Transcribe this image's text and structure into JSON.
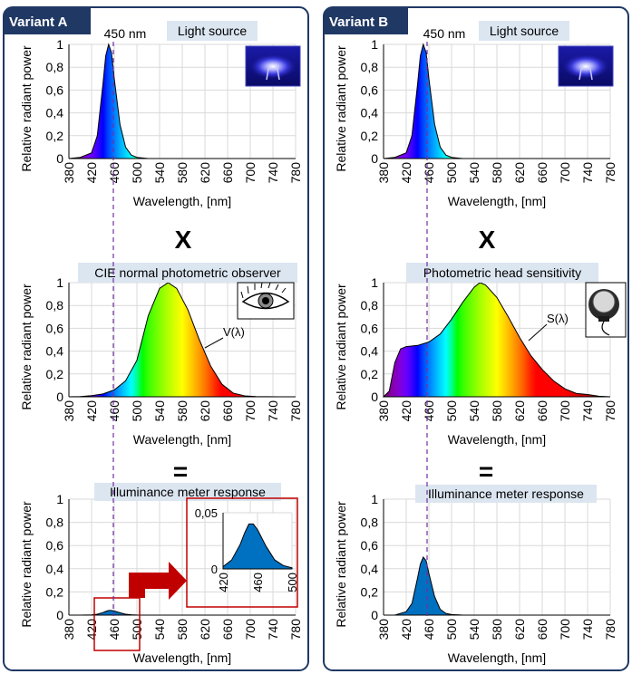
{
  "colors": {
    "frame": "#1f3864",
    "tab_fill": "#1f3864",
    "title_fill": "#dce6f1",
    "dash_line": "#7030a0",
    "response_fill": "#0070c0",
    "inset_frame": "#c00000",
    "arrow": "#c00000"
  },
  "variant_a": {
    "tab": "Variant A",
    "marker_label": "450 nm",
    "operator_multiply": "X",
    "operator_equals": "=",
    "source_chart": {
      "title": "Light source",
      "ylabel": "Relative radiant power",
      "xlabel": "Wavelength, [nm]"
    },
    "sensitivity_chart": {
      "title": "CIE normal photometric observer",
      "curve_label": "V(λ)",
      "ylabel": "Relative radiant power",
      "xlabel": "Wavelength, [nm]"
    },
    "response_chart": {
      "title": "Illuminance meter response",
      "ylabel": "Relative radiant power",
      "xlabel": "Wavelength, [nm]"
    }
  },
  "variant_b": {
    "tab": "Variant B",
    "marker_label": "450 nm",
    "operator_multiply": "X",
    "operator_equals": "=",
    "source_chart": {
      "title": "Light source",
      "ylabel": "Relative radiant power",
      "xlabel": "Wavelength, [nm]"
    },
    "sensitivity_chart": {
      "title": "Photometric head sensitivity",
      "curve_label": "S(λ)",
      "ylabel": "Relative radiant power",
      "xlabel": "Wavelength, [nm]"
    },
    "response_chart": {
      "title": "Illuminance meter response",
      "ylabel": "Relative radiant power",
      "xlabel": "Wavelength, [nm]"
    }
  },
  "chart_data": [
    {
      "type": "area",
      "panel": "A-source",
      "x": [
        380,
        400,
        420,
        430,
        440,
        445,
        450,
        455,
        460,
        470,
        480,
        490,
        500,
        520
      ],
      "y": [
        0,
        0.01,
        0.05,
        0.2,
        0.65,
        0.9,
        1.0,
        0.93,
        0.7,
        0.3,
        0.1,
        0.03,
        0.01,
        0
      ],
      "xlim": [
        380,
        780
      ],
      "ylim": [
        0,
        1
      ],
      "xticks": [
        "380",
        "420",
        "460",
        "500",
        "540",
        "580",
        "620",
        "660",
        "700",
        "740",
        "780"
      ],
      "yticks": [
        "0",
        "0,2",
        "0,4",
        "0,6",
        "0,8",
        "1"
      ],
      "grid": true
    },
    {
      "type": "area",
      "panel": "A-sensitivity",
      "x": [
        380,
        400,
        420,
        440,
        460,
        480,
        500,
        520,
        540,
        555,
        570,
        590,
        610,
        630,
        650,
        670,
        690,
        710,
        730,
        750,
        780
      ],
      "y": [
        0,
        0.002,
        0.01,
        0.025,
        0.06,
        0.14,
        0.32,
        0.71,
        0.95,
        1.0,
        0.95,
        0.76,
        0.5,
        0.27,
        0.11,
        0.032,
        0.008,
        0.002,
        0.0005,
        0.0001,
        0
      ],
      "xlim": [
        380,
        780
      ],
      "ylim": [
        0,
        1
      ],
      "xticks": [
        "380",
        "420",
        "460",
        "500",
        "540",
        "580",
        "620",
        "660",
        "700",
        "740",
        "780"
      ],
      "yticks": [
        "0",
        "0,2",
        "0,4",
        "0,6",
        "0,8",
        "1"
      ],
      "grid": true
    },
    {
      "type": "area",
      "panel": "A-response",
      "x": [
        400,
        420,
        430,
        440,
        445,
        450,
        455,
        460,
        470,
        480,
        490,
        500,
        520
      ],
      "y": [
        0,
        0.002,
        0.008,
        0.022,
        0.032,
        0.04,
        0.04,
        0.035,
        0.02,
        0.008,
        0.003,
        0.001,
        0
      ],
      "xlim": [
        380,
        780
      ],
      "ylim": [
        0,
        1
      ],
      "xticks": [
        "380",
        "420",
        "460",
        "500",
        "540",
        "580",
        "620",
        "660",
        "700",
        "740",
        "780"
      ],
      "yticks": [
        "0",
        "0,2",
        "0,4",
        "0,6",
        "0,8",
        "1"
      ],
      "grid": true
    },
    {
      "type": "area",
      "panel": "A-response-inset",
      "x": [
        420,
        430,
        440,
        445,
        450,
        455,
        460,
        470,
        480,
        490,
        500
      ],
      "y": [
        0.002,
        0.008,
        0.022,
        0.032,
        0.04,
        0.04,
        0.035,
        0.02,
        0.008,
        0.003,
        0.001
      ],
      "xlim": [
        420,
        500
      ],
      "ylim": [
        0,
        0.05
      ],
      "xticks": [
        "420",
        "460",
        "500"
      ],
      "yticks": [
        "0",
        "0,05"
      ],
      "grid": true
    },
    {
      "type": "area",
      "panel": "B-source",
      "x": [
        380,
        400,
        420,
        430,
        440,
        445,
        450,
        455,
        460,
        470,
        480,
        490,
        500,
        520
      ],
      "y": [
        0,
        0.01,
        0.05,
        0.2,
        0.65,
        0.9,
        1.0,
        0.93,
        0.7,
        0.3,
        0.1,
        0.03,
        0.01,
        0
      ],
      "xlim": [
        380,
        780
      ],
      "ylim": [
        0,
        1
      ],
      "xticks": [
        "380",
        "420",
        "460",
        "500",
        "540",
        "580",
        "620",
        "660",
        "700",
        "740",
        "780"
      ],
      "yticks": [
        "0",
        "0,2",
        "0,4",
        "0,6",
        "0,8",
        "1"
      ],
      "grid": true
    },
    {
      "type": "area",
      "panel": "B-sensitivity",
      "x": [
        380,
        390,
        400,
        410,
        420,
        440,
        460,
        480,
        500,
        520,
        540,
        550,
        560,
        580,
        600,
        620,
        640,
        660,
        680,
        700,
        720,
        740,
        760,
        780
      ],
      "y": [
        0,
        0.05,
        0.3,
        0.42,
        0.44,
        0.45,
        0.48,
        0.55,
        0.68,
        0.83,
        0.96,
        1.0,
        0.98,
        0.87,
        0.7,
        0.52,
        0.36,
        0.24,
        0.14,
        0.07,
        0.03,
        0.02,
        0.005,
        0
      ],
      "xlim": [
        380,
        780
      ],
      "ylim": [
        0,
        1
      ],
      "xticks": [
        "380",
        "420",
        "460",
        "500",
        "540",
        "580",
        "620",
        "660",
        "700",
        "740",
        "780"
      ],
      "yticks": [
        "0",
        "0,2",
        "0,4",
        "0,6",
        "0,8",
        "1"
      ],
      "grid": true
    },
    {
      "type": "area",
      "panel": "B-response",
      "x": [
        400,
        420,
        430,
        440,
        445,
        450,
        455,
        460,
        470,
        480,
        490,
        500,
        520
      ],
      "y": [
        0,
        0.03,
        0.1,
        0.32,
        0.44,
        0.5,
        0.47,
        0.36,
        0.16,
        0.05,
        0.015,
        0.005,
        0
      ],
      "xlim": [
        380,
        780
      ],
      "ylim": [
        0,
        1
      ],
      "xticks": [
        "380",
        "420",
        "460",
        "500",
        "540",
        "580",
        "620",
        "660",
        "700",
        "740",
        "780"
      ],
      "yticks": [
        "0",
        "0,2",
        "0,4",
        "0,6",
        "0,8",
        "1"
      ],
      "grid": true
    }
  ]
}
